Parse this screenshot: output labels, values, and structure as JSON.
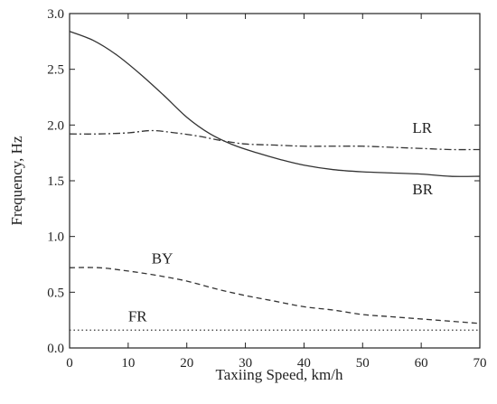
{
  "chart_data": {
    "type": "line",
    "xlabel": "Taxiing Speed, km/h",
    "ylabel": "Frequency, Hz",
    "xlim": [
      0,
      70
    ],
    "ylim": [
      0,
      3.0
    ],
    "xticks": [
      "0",
      "10",
      "20",
      "30",
      "40",
      "50",
      "60",
      "70"
    ],
    "yticks": [
      "0.0",
      "0.5",
      "1.0",
      "1.5",
      "2.0",
      "2.5",
      "3.0"
    ],
    "grid": false,
    "series": [
      {
        "name": "BR",
        "style": "solid",
        "x": [
          0,
          4,
          8,
          12,
          16,
          20,
          24,
          28,
          32,
          36,
          40,
          45,
          50,
          55,
          60,
          65,
          70
        ],
        "y": [
          2.84,
          2.76,
          2.63,
          2.46,
          2.27,
          2.07,
          1.92,
          1.82,
          1.75,
          1.69,
          1.64,
          1.6,
          1.58,
          1.57,
          1.56,
          1.54,
          1.54
        ]
      },
      {
        "name": "LR",
        "style": "dashdot",
        "x": [
          0,
          5,
          10,
          14,
          18,
          22,
          26,
          30,
          35,
          40,
          45,
          50,
          55,
          60,
          65,
          70
        ],
        "y": [
          1.92,
          1.92,
          1.93,
          1.95,
          1.93,
          1.9,
          1.86,
          1.83,
          1.82,
          1.81,
          1.81,
          1.81,
          1.8,
          1.79,
          1.78,
          1.78
        ]
      },
      {
        "name": "BY",
        "style": "dashed",
        "x": [
          0,
          5,
          10,
          15,
          20,
          25,
          30,
          35,
          40,
          45,
          50,
          55,
          60,
          65,
          70
        ],
        "y": [
          0.72,
          0.72,
          0.69,
          0.65,
          0.6,
          0.53,
          0.47,
          0.42,
          0.37,
          0.34,
          0.3,
          0.28,
          0.26,
          0.24,
          0.22
        ]
      },
      {
        "name": "FR",
        "style": "dotted",
        "x": [
          0,
          10,
          20,
          30,
          40,
          50,
          60,
          70
        ],
        "y": [
          0.16,
          0.16,
          0.16,
          0.16,
          0.16,
          0.16,
          0.16,
          0.16
        ]
      }
    ],
    "annotations": [
      {
        "text": "LR",
        "x": 58.5,
        "y": 1.93
      },
      {
        "text": "BR",
        "x": 58.5,
        "y": 1.38
      },
      {
        "text": "BY",
        "x": 14.0,
        "y": 0.76
      },
      {
        "text": "FR",
        "x": 10.0,
        "y": 0.24
      }
    ],
    "colors": {
      "line": "#333333",
      "axis": "#222222"
    }
  }
}
